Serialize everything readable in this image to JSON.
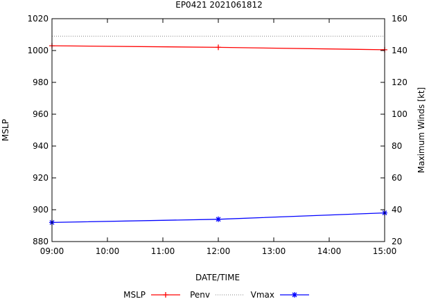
{
  "chart_data": {
    "type": "line",
    "title": "EP0421 2021061812",
    "xlabel": "DATE/TIME",
    "ylabel_left": "MSLP",
    "ylabel_right": "Maximum Winds [kt]",
    "x_ticks": [
      "09:00",
      "10:00",
      "11:00",
      "12:00",
      "13:00",
      "14:00",
      "15:00"
    ],
    "x_hours": [
      9,
      10,
      11,
      12,
      13,
      14,
      15
    ],
    "xlim": [
      9,
      15
    ],
    "ylim_left": [
      880,
      1020
    ],
    "ylim_right": [
      20,
      160
    ],
    "left_ticks": [
      "880",
      "900",
      "920",
      "940",
      "960",
      "980",
      "1000",
      "1020"
    ],
    "right_ticks": [
      "20",
      "40",
      "60",
      "80",
      "100",
      "120",
      "140",
      "160"
    ],
    "series": [
      {
        "name": "MSLP",
        "axis": "left",
        "color": "#ff0000",
        "marker": "plus",
        "x": [
          9,
          12,
          15
        ],
        "values": [
          1003,
          1002,
          1000.5
        ]
      },
      {
        "name": "Penv",
        "axis": "left",
        "color": "#808080",
        "style": "dotted",
        "x": [
          9,
          15
        ],
        "values": [
          1009,
          1009
        ]
      },
      {
        "name": "Vmax",
        "axis": "right",
        "color": "#0000ff",
        "marker": "star",
        "x": [
          9,
          12,
          15
        ],
        "values": [
          32,
          34,
          38
        ]
      }
    ],
    "legend": {
      "position": "bottom",
      "entries": [
        "MSLP",
        "Penv",
        "Vmax"
      ]
    }
  }
}
